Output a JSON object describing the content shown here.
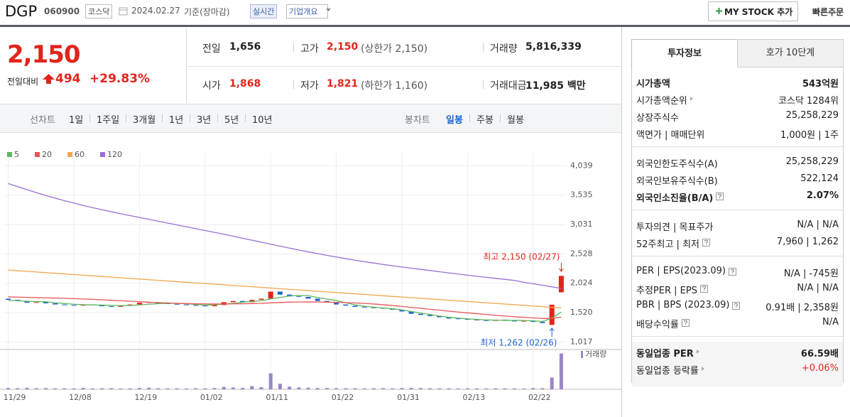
{
  "header": {
    "name": "DGP",
    "code": "060900",
    "market": "코스닥",
    "date": "2024.02.27",
    "basis": "기준(장마감)",
    "realtime": "실시간",
    "company_overview": "기업개요",
    "my_stock": "MY STOCK 추가",
    "quick_order": "빠른주문"
  },
  "quote": {
    "price": "2,150",
    "change_label": "전일대비",
    "change": "494",
    "change_rate": "+29.83%",
    "items": [
      {
        "label": "전일",
        "value": "1,656"
      },
      {
        "label": "고가",
        "value": "2,150",
        "note": "(상한가 2,150)",
        "color": "#e1251b"
      },
      {
        "label": "거래량",
        "value": "5,816,339"
      },
      {
        "label": "시가",
        "value": "1,868",
        "color": "#e1251b"
      },
      {
        "label": "저가",
        "value": "1,821",
        "note": "(하한가 1,160)",
        "color": "#e1251b"
      },
      {
        "label": "거래대금",
        "value": "11,985 백만"
      }
    ]
  },
  "period_tabs": {
    "line_label": "선차트",
    "line_options": [
      "1일",
      "1주일",
      "3개월",
      "1년",
      "3년",
      "5년",
      "10년"
    ],
    "candle_label": "봉차트",
    "candle_options": [
      "일봉",
      "주봉",
      "월봉"
    ],
    "selected_candle": 0
  },
  "chart_data": {
    "type": "candlestick",
    "categories": [
      "11/29",
      null,
      null,
      null,
      null,
      null,
      null,
      "12/08",
      null,
      null,
      null,
      null,
      null,
      null,
      "12/19",
      null,
      null,
      null,
      null,
      null,
      null,
      "01/02",
      null,
      null,
      null,
      null,
      null,
      null,
      "01/11",
      null,
      null,
      null,
      null,
      null,
      null,
      "01/22",
      null,
      null,
      null,
      null,
      null,
      null,
      "01/31",
      null,
      null,
      null,
      null,
      null,
      null,
      "02/13",
      null,
      null,
      null,
      null,
      null,
      null,
      "02/22",
      null,
      null,
      null
    ],
    "open": [
      1760,
      1740,
      1720,
      1690,
      1700,
      1680,
      1660,
      1650,
      1640,
      1660,
      1650,
      1630,
      1620,
      1640,
      1660,
      1690,
      1700,
      1680,
      1670,
      1660,
      1650,
      1640,
      1630,
      1650,
      1700,
      1720,
      1700,
      1740,
      1760,
      1880,
      1830,
      1800,
      1790,
      1760,
      1720,
      1700,
      1660,
      1640,
      1620,
      1610,
      1600,
      1590,
      1570,
      1540,
      1500,
      1480,
      1460,
      1440,
      1420,
      1410,
      1400,
      1390,
      1380,
      1400,
      1390,
      1370,
      1380,
      1360,
      1310,
      1868
    ],
    "close": [
      1740,
      1720,
      1690,
      1700,
      1680,
      1660,
      1650,
      1640,
      1660,
      1650,
      1630,
      1620,
      1640,
      1660,
      1690,
      1700,
      1680,
      1670,
      1660,
      1650,
      1640,
      1630,
      1650,
      1700,
      1720,
      1700,
      1740,
      1760,
      1880,
      1830,
      1800,
      1790,
      1760,
      1720,
      1700,
      1660,
      1640,
      1620,
      1610,
      1600,
      1590,
      1570,
      1540,
      1500,
      1480,
      1460,
      1440,
      1420,
      1410,
      1400,
      1390,
      1380,
      1400,
      1390,
      1370,
      1380,
      1360,
      1340,
      1656,
      2150
    ],
    "volume": [
      210000,
      180000,
      250000,
      160000,
      190000,
      140000,
      170000,
      150000,
      230000,
      140000,
      160000,
      180000,
      130000,
      150000,
      220000,
      260000,
      170000,
      150000,
      140000,
      130000,
      160000,
      150000,
      210000,
      380000,
      290000,
      240000,
      520000,
      340000,
      2600000,
      900000,
      420000,
      310000,
      260000,
      220000,
      200000,
      180000,
      170000,
      160000,
      150000,
      170000,
      180000,
      160000,
      200000,
      230000,
      190000,
      170000,
      160000,
      150000,
      140000,
      150000,
      140000,
      130000,
      160000,
      150000,
      140000,
      130000,
      190000,
      170000,
      1900000,
      5816339
    ],
    "up_color": "#e1251b",
    "down_color": "#1b63d6",
    "volume_color": "#9a86c8",
    "series": [
      {
        "name": "5",
        "color": "#5cb85c",
        "values": [
          1730,
          1725,
          1715,
          1710,
          1706,
          1690,
          1676,
          1664,
          1656,
          1652,
          1650,
          1644,
          1640,
          1644,
          1652,
          1664,
          1674,
          1680,
          1680,
          1672,
          1660,
          1650,
          1654,
          1666,
          1680,
          1698,
          1714,
          1724,
          1756,
          1780,
          1804,
          1816,
          1812,
          1780,
          1754,
          1726,
          1690,
          1654,
          1630,
          1614,
          1600,
          1586,
          1566,
          1540,
          1514,
          1488,
          1462,
          1442,
          1426,
          1414,
          1404,
          1396,
          1390,
          1388,
          1388,
          1386,
          1380,
          1370,
          1426,
          1530
        ]
      },
      {
        "name": "20",
        "color": "#ea5455",
        "values": [
          1790,
          1786,
          1782,
          1778,
          1774,
          1770,
          1766,
          1760,
          1754,
          1748,
          1740,
          1732,
          1724,
          1716,
          1708,
          1700,
          1692,
          1686,
          1680,
          1676,
          1672,
          1670,
          1668,
          1668,
          1670,
          1672,
          1676,
          1680,
          1688,
          1694,
          1700,
          1702,
          1704,
          1702,
          1700,
          1696,
          1692,
          1686,
          1678,
          1668,
          1656,
          1642,
          1626,
          1610,
          1594,
          1578,
          1562,
          1546,
          1530,
          1516,
          1502,
          1488,
          1474,
          1462,
          1450,
          1440,
          1430,
          1420,
          1420,
          1442
        ]
      },
      {
        "name": "60",
        "color": "#f5a54a",
        "values": [
          2250,
          2239,
          2228,
          2217,
          2206,
          2195,
          2184,
          2173,
          2162,
          2151,
          2140,
          2129,
          2118,
          2107,
          2096,
          2085,
          2074,
          2063,
          2052,
          2041,
          2030,
          2019,
          2008,
          1997,
          1986,
          1975,
          1964,
          1953,
          1942,
          1931,
          1920,
          1909,
          1898,
          1887,
          1876,
          1865,
          1854,
          1843,
          1832,
          1821,
          1810,
          1799,
          1788,
          1777,
          1766,
          1755,
          1744,
          1733,
          1722,
          1711,
          1700,
          1689,
          1678,
          1667,
          1656,
          1645,
          1634,
          1623,
          1612,
          1601
        ]
      },
      {
        "name": "120",
        "color": "#9b6dd6",
        "values": [
          3734,
          3680,
          3628,
          3578,
          3530,
          3484,
          3440,
          3398,
          3358,
          3320,
          3284,
          3250,
          3216,
          3184,
          3152,
          3120,
          3088,
          3056,
          3024,
          2992,
          2960,
          2928,
          2896,
          2864,
          2830,
          2796,
          2762,
          2728,
          2694,
          2660,
          2626,
          2594,
          2562,
          2532,
          2502,
          2474,
          2446,
          2420,
          2394,
          2370,
          2346,
          2324,
          2302,
          2282,
          2262,
          2242,
          2222,
          2202,
          2182,
          2162,
          2144,
          2126,
          2108,
          2090,
          2072,
          2040,
          2015,
          1990,
          1962,
          1935
        ]
      }
    ],
    "ylim": [
      900,
      4140
    ],
    "yticks": [
      {
        "value": 1017,
        "label": "1,017"
      },
      {
        "value": 1520,
        "label": "1,520"
      },
      {
        "value": 2024,
        "label": "2,024"
      },
      {
        "value": 2528,
        "label": "2,528"
      },
      {
        "value": 3031,
        "label": "3,031"
      },
      {
        "value": 3535,
        "label": "3,535"
      },
      {
        "value": 4039,
        "label": "4,039"
      }
    ],
    "volume_ylim": [
      0,
      6000000
    ],
    "volume_label": "거래량",
    "grid": true,
    "max_label": "최고 2,150 (02/27)",
    "min_label": "최저 1,262 (02/26)"
  },
  "side_panel": {
    "tabs": [
      "투자정보",
      "호가 10단계"
    ],
    "groups": [
      [
        {
          "label": "시가총액",
          "value": "543억원",
          "bold": true
        },
        {
          "label": "시가총액순위",
          "link": true,
          "value": "코스닥 1284위"
        },
        {
          "label": "상장주식수",
          "value": "25,258,229"
        },
        {
          "label": "액면가 | 매매단위",
          "value": "1,000원 | 1주"
        }
      ],
      [
        {
          "label": "외국인한도주식수(A)",
          "value": "25,258,229"
        },
        {
          "label": "외국인보유주식수(B)",
          "value": "522,124"
        },
        {
          "label": "외국인소진율(B/A)",
          "help": true,
          "value": "2.07%",
          "bold": true
        }
      ],
      [
        {
          "label": "투자의견 | 목표주가",
          "value": "N/A | N/A"
        },
        {
          "label": "52주최고 | 최저",
          "help": true,
          "value": "7,960 | 1,262"
        }
      ],
      [
        {
          "label": "PER | EPS(2023.09)",
          "help": true,
          "value": "N/A | -745원"
        },
        {
          "label": "추정PER | EPS",
          "help": true,
          "value": "N/A | N/A"
        },
        {
          "label": "PBR | BPS (2023.09)",
          "help": true,
          "value": "0.91배 | 2,358원"
        },
        {
          "label": "배당수익률",
          "help": true,
          "value": "N/A"
        }
      ],
      [
        {
          "label": "동일업종 PER",
          "link": true,
          "value": "66.59배",
          "bold": true
        },
        {
          "label": "동일업종 등락률",
          "link": true,
          "value": "+0.06%",
          "color": "#e1251b"
        }
      ]
    ]
  }
}
